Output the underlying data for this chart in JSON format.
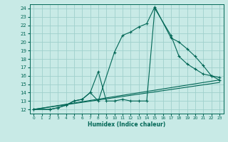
{
  "xlabel": "Humidex (Indice chaleur)",
  "bg_color": "#c8eae6",
  "grid_color": "#a0d0cc",
  "line_color": "#006655",
  "xlim": [
    -0.5,
    23.5
  ],
  "ylim": [
    11.5,
    24.5
  ],
  "xticks": [
    0,
    1,
    2,
    3,
    4,
    5,
    6,
    7,
    8,
    9,
    10,
    11,
    12,
    13,
    14,
    15,
    16,
    17,
    18,
    19,
    20,
    21,
    22,
    23
  ],
  "yticks": [
    12,
    13,
    14,
    15,
    16,
    17,
    18,
    19,
    20,
    21,
    22,
    23,
    24
  ],
  "line1_x": [
    0,
    2,
    3,
    4,
    5,
    6,
    7,
    8,
    10,
    11,
    12,
    13,
    14,
    15,
    17,
    18,
    19,
    20,
    21,
    22,
    23
  ],
  "line1_y": [
    12,
    12,
    12.2,
    12.5,
    13,
    13.2,
    14,
    13,
    18.8,
    20.8,
    21.2,
    21.8,
    22.2,
    24.2,
    20.5,
    20,
    19.2,
    18.3,
    17.2,
    16.0,
    15.5
  ],
  "line2_x": [
    0,
    2,
    3,
    4,
    5,
    6,
    7,
    8,
    9,
    10,
    11,
    12,
    13,
    14,
    15,
    17,
    18,
    19,
    20,
    21,
    22,
    23
  ],
  "line2_y": [
    12,
    12,
    12.2,
    12.5,
    13,
    13.2,
    14,
    16.5,
    13,
    13,
    13.2,
    13,
    13,
    13,
    24.0,
    20.8,
    18.3,
    17.4,
    16.8,
    16.2,
    16.0,
    15.8
  ],
  "line3_x": [
    0,
    23
  ],
  "line3_y": [
    12,
    15.5
  ],
  "line4_x": [
    0,
    23
  ],
  "line4_y": [
    12,
    15.2
  ]
}
